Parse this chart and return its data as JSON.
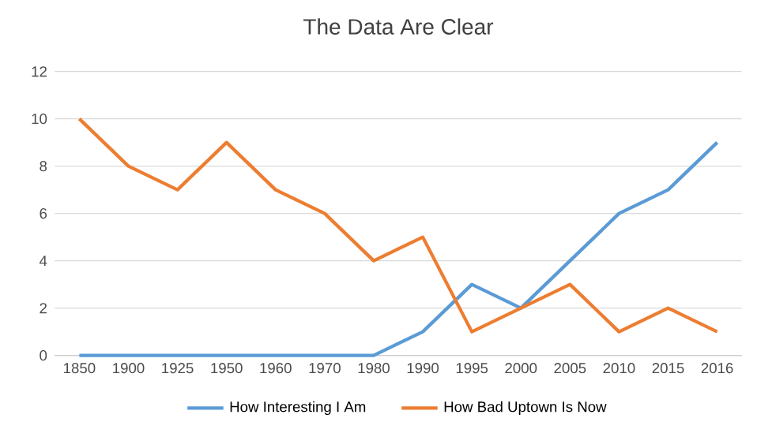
{
  "chart_data": {
    "type": "line",
    "title": "The Data Are Clear",
    "categories": [
      "1850",
      "1900",
      "1925",
      "1950",
      "1960",
      "1970",
      "1980",
      "1990",
      "1995",
      "2000",
      "2005",
      "2010",
      "2015",
      "2016"
    ],
    "series": [
      {
        "name": "How Interesting I Am",
        "color": "#5b9bd5",
        "values": [
          0,
          0,
          0,
          0,
          0,
          0,
          0,
          1,
          3,
          2,
          4,
          6,
          7,
          9
        ]
      },
      {
        "name": "How Bad Uptown Is Now",
        "color": "#ed7d31",
        "values": [
          10,
          8,
          7,
          9,
          7,
          6,
          4,
          5,
          1,
          2,
          3,
          1,
          2,
          1
        ]
      }
    ],
    "ylim": [
      0,
      12
    ],
    "yticks": [
      0,
      2,
      4,
      6,
      8,
      10,
      12
    ],
    "grid": "y",
    "legend": "bottom"
  }
}
